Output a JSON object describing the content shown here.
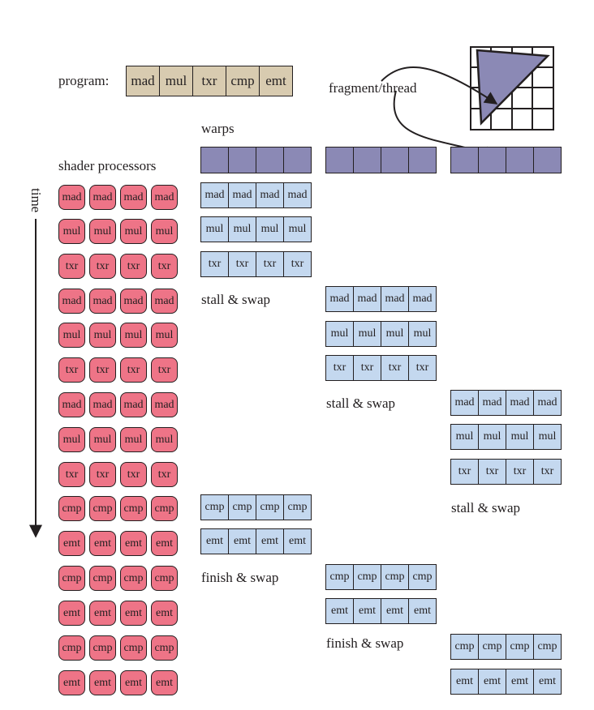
{
  "program": {
    "label": "program:",
    "instructions": [
      "mad",
      "mul",
      "txr",
      "cmp",
      "emt"
    ]
  },
  "labels": {
    "fragment_thread": "fragment/thread",
    "warps": "warps",
    "shader_processors": "shader processors",
    "time": "time",
    "stall_swap": "stall & swap",
    "finish_swap": "finish & swap"
  },
  "shader_rows": [
    "mad",
    "mul",
    "txr",
    "mad",
    "mul",
    "txr",
    "mad",
    "mul",
    "txr",
    "cmp",
    "emt",
    "cmp",
    "emt",
    "cmp",
    "emt"
  ],
  "warp1_rows": [
    "mad",
    "mul",
    "txr",
    "cmp",
    "emt"
  ],
  "warp2_rows": [
    "mad",
    "mul",
    "txr",
    "cmp",
    "emt"
  ],
  "warp3_rows": [
    "mad",
    "mul",
    "txr",
    "cmp",
    "emt"
  ],
  "colors": {
    "program_fill": "#d8cbb0",
    "warp_fill": "#8b89b5",
    "instruction_fill": "#c4d8ef",
    "processor_fill": "#ee7487",
    "stroke": "#231f20"
  }
}
